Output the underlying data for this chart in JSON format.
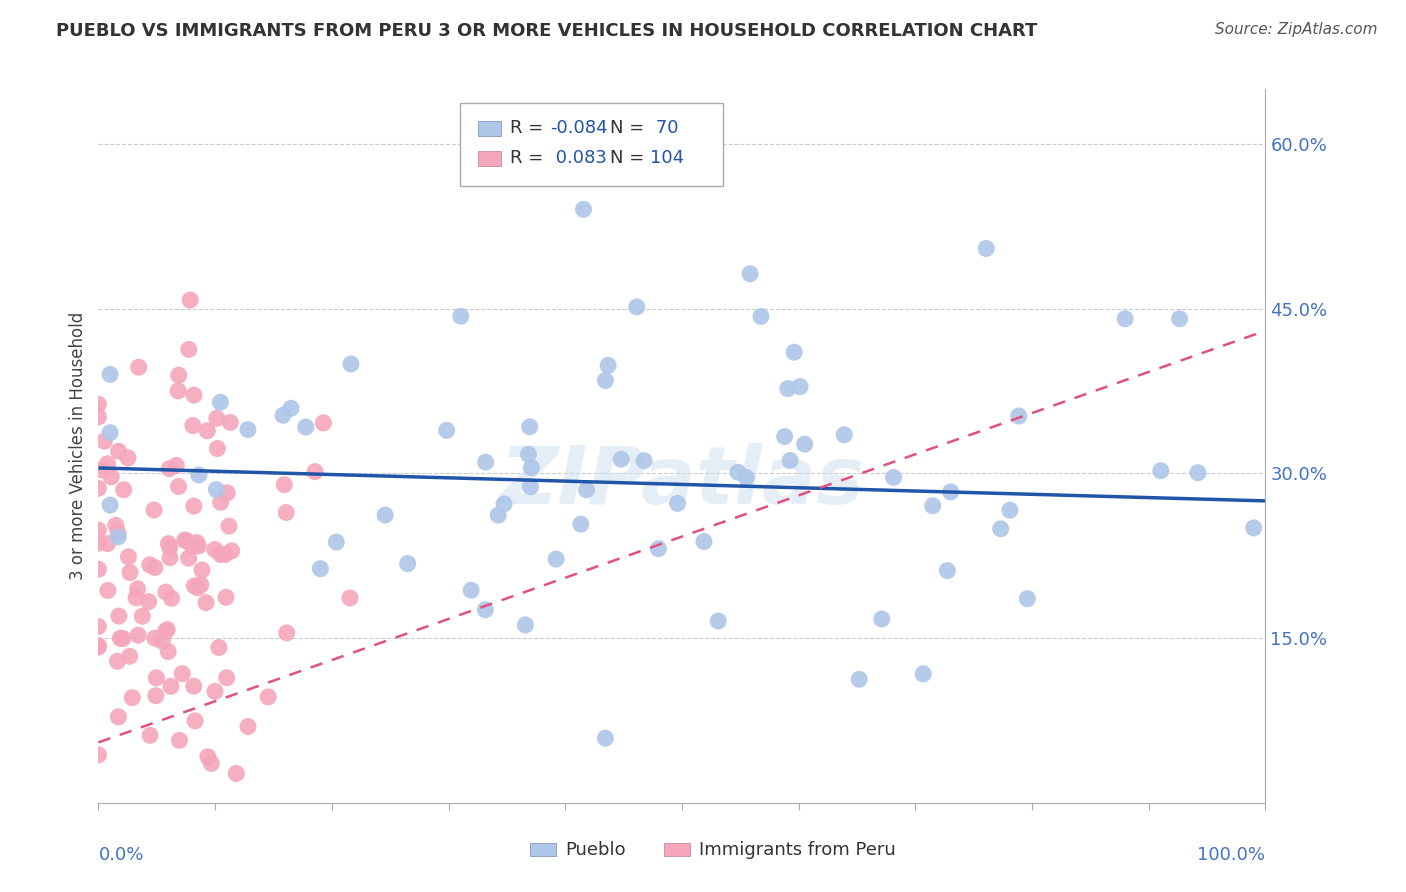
{
  "title": "PUEBLO VS IMMIGRANTS FROM PERU 3 OR MORE VEHICLES IN HOUSEHOLD CORRELATION CHART",
  "source": "Source: ZipAtlas.com",
  "ylabel": "3 or more Vehicles in Household",
  "y_ticks": [
    0.0,
    0.15,
    0.3,
    0.45,
    0.6
  ],
  "xlim": [
    0.0,
    1.0
  ],
  "ylim": [
    0.0,
    0.65
  ],
  "pueblo_color": "#aec6e8",
  "peru_color": "#f4a7bb",
  "pueblo_line_color": "#2155a8",
  "peru_line_color": "#e05080",
  "pueblo_R": -0.084,
  "pueblo_N": 70,
  "peru_R": 0.083,
  "peru_N": 104,
  "watermark": "ZIPatlas",
  "background_color": "#ffffff",
  "grid_color": "#cccccc",
  "tick_color": "#4472c4",
  "title_color": "#333333",
  "title_fontsize": 13,
  "source_fontsize": 11,
  "ytick_fontsize": 13,
  "ylabel_fontsize": 12,
  "legend_fontsize": 13
}
